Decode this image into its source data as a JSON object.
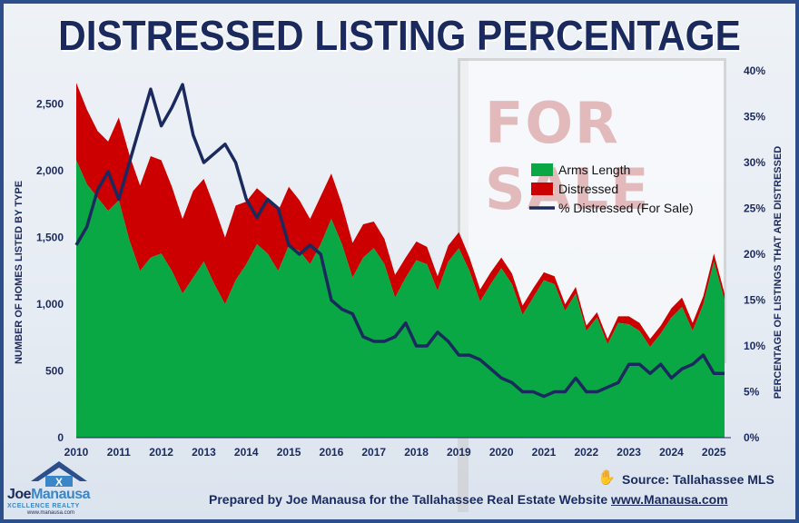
{
  "title": "DISTRESSED LISTING PERCENTAGE",
  "background_sign_text": "FOR SALE",
  "source": "Source: Tallahassee MLS",
  "footer": {
    "text": "Prepared by Joe Manausa for the Tallahassee Real Estate Website",
    "site": "www.Manausa.com"
  },
  "logo": {
    "name_part1": "Joe",
    "name_part2": "Manausa",
    "realty": "XCELLENCE REALTY",
    "url": "www.manausa.com"
  },
  "colors": {
    "arms_length": "#0aa845",
    "distressed": "#cc0000",
    "pct_line": "#1b2a5e",
    "title": "#1b2a5e"
  },
  "chart_data": {
    "type": "area",
    "ylabel_left": "NUMBER OF HOMES LISTED BY TYPE",
    "ylabel_right": "PERCENTAGE OF LISTINGS THAT ARE DISTRESSED",
    "ylim_left": [
      0,
      2750
    ],
    "ylim_right": [
      0,
      40
    ],
    "xlim": [
      2010,
      2025.4
    ],
    "x_ticks": [
      "2010",
      "2011",
      "2012",
      "2013",
      "2014",
      "2015",
      "2016",
      "2017",
      "2018",
      "2019",
      "2020",
      "2021",
      "2022",
      "2023",
      "2024",
      "2025"
    ],
    "y_ticks_left": [
      "0",
      "500",
      "1,000",
      "1,500",
      "2,000",
      "2,500"
    ],
    "y_ticks_right": [
      "0%",
      "5%",
      "10%",
      "15%",
      "20%",
      "25%",
      "30%",
      "35%",
      "40%"
    ],
    "legend": [
      "Arms Length",
      "Distressed",
      "% Distressed (For Sale)"
    ],
    "legend_position": "upper-right",
    "x": [
      2010.0,
      2010.25,
      2010.5,
      2010.75,
      2011.0,
      2011.25,
      2011.5,
      2011.75,
      2012.0,
      2012.25,
      2012.5,
      2012.75,
      2013.0,
      2013.25,
      2013.5,
      2013.75,
      2014.0,
      2014.25,
      2014.5,
      2014.75,
      2015.0,
      2015.25,
      2015.5,
      2015.75,
      2016.0,
      2016.25,
      2016.5,
      2016.75,
      2017.0,
      2017.25,
      2017.5,
      2017.75,
      2018.0,
      2018.25,
      2018.5,
      2018.75,
      2019.0,
      2019.25,
      2019.5,
      2019.75,
      2020.0,
      2020.25,
      2020.5,
      2020.75,
      2021.0,
      2021.25,
      2021.5,
      2021.75,
      2022.0,
      2022.25,
      2022.5,
      2022.75,
      2023.0,
      2023.25,
      2023.5,
      2023.75,
      2024.0,
      2024.25,
      2024.5,
      2024.75,
      2025.0,
      2025.25
    ],
    "series": [
      {
        "name": "Arms Length",
        "type": "area",
        "values": [
          2080,
          1900,
          1800,
          1700,
          1780,
          1480,
          1250,
          1350,
          1380,
          1250,
          1080,
          1200,
          1320,
          1150,
          1000,
          1180,
          1300,
          1450,
          1380,
          1250,
          1440,
          1400,
          1300,
          1450,
          1640,
          1450,
          1200,
          1350,
          1420,
          1300,
          1050,
          1200,
          1330,
          1300,
          1100,
          1320,
          1420,
          1250,
          1020,
          1150,
          1270,
          1150,
          920,
          1050,
          1180,
          1150,
          950,
          1080,
          800,
          900,
          700,
          860,
          850,
          800,
          680,
          780,
          900,
          980,
          800,
          1000,
          1320,
          1030
        ]
      },
      {
        "name": "Distressed",
        "type": "area",
        "values": [
          580,
          560,
          500,
          520,
          620,
          640,
          640,
          760,
          700,
          630,
          560,
          650,
          620,
          580,
          500,
          560,
          470,
          420,
          420,
          450,
          440,
          380,
          340,
          360,
          340,
          300,
          260,
          250,
          200,
          190,
          170,
          150,
          140,
          130,
          110,
          120,
          120,
          100,
          90,
          90,
          80,
          80,
          70,
          70,
          60,
          60,
          50,
          50,
          40,
          40,
          40,
          50,
          60,
          60,
          60,
          60,
          70,
          70,
          60,
          60,
          60,
          50
        ]
      },
      {
        "name": "% Distressed (For Sale)",
        "type": "line",
        "axis": "right",
        "values": [
          21,
          23,
          27,
          29,
          26,
          30,
          34,
          38,
          34,
          36,
          38.5,
          33,
          30,
          31,
          32,
          30,
          26,
          24,
          26,
          25,
          21,
          20,
          21,
          20,
          15,
          14,
          13.5,
          11,
          10.5,
          10.5,
          11,
          12.5,
          10,
          10,
          11.5,
          10.5,
          9,
          9,
          8.5,
          7.5,
          6.5,
          6,
          5,
          5,
          4.5,
          5,
          5,
          6.5,
          5,
          5,
          5.5,
          6,
          8,
          8,
          7,
          8,
          6.5,
          7.5,
          8,
          9,
          7,
          7
        ]
      }
    ],
    "grid": false
  }
}
